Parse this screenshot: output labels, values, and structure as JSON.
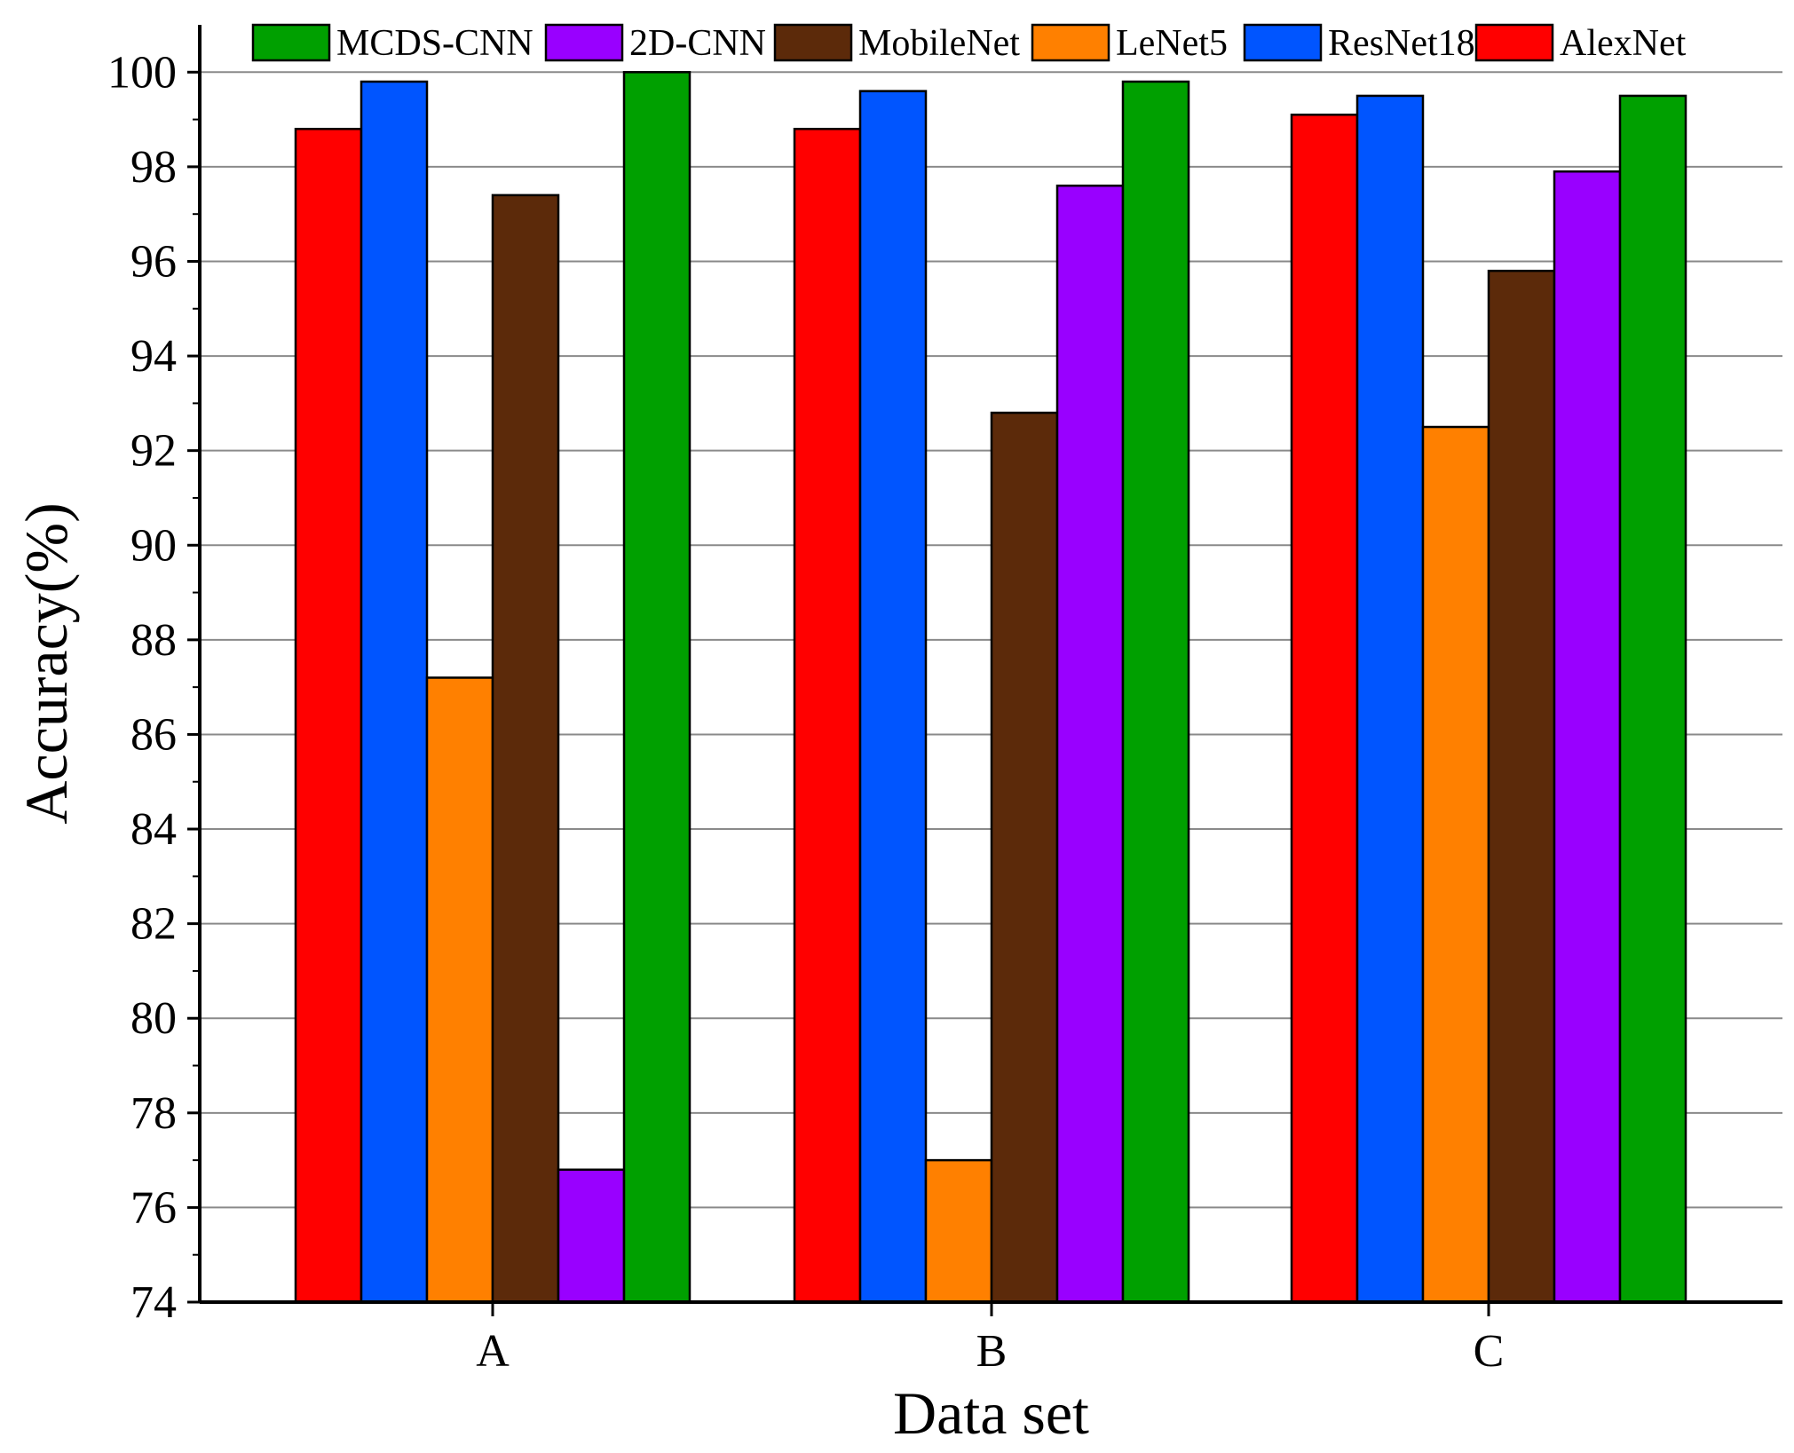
{
  "chart_data": {
    "type": "bar",
    "title": "",
    "xlabel": "Data set",
    "ylabel": "Accuracy(%)",
    "ylim": [
      74,
      101
    ],
    "yticks": [
      74,
      76,
      78,
      80,
      82,
      84,
      86,
      88,
      90,
      92,
      94,
      96,
      98,
      100
    ],
    "grid": true,
    "legend_position": "top",
    "categories": [
      "A",
      "B",
      "C"
    ],
    "series": [
      {
        "name": "AlexNet",
        "color": "#ff0000",
        "values": [
          98.8,
          98.8,
          99.1
        ]
      },
      {
        "name": "ResNet18",
        "color": "#0055ff",
        "values": [
          99.8,
          99.6,
          99.5
        ]
      },
      {
        "name": "LeNet5",
        "color": "#ff8000",
        "values": [
          87.2,
          77.0,
          92.5
        ]
      },
      {
        "name": "MobileNet",
        "color": "#5c2a0a",
        "values": [
          97.4,
          92.8,
          95.8
        ]
      },
      {
        "name": "2D-CNN",
        "color": "#9900ff",
        "values": [
          76.8,
          97.6,
          97.9
        ]
      },
      {
        "name": "MCDS-CNN",
        "color": "#00a000",
        "values": [
          100.0,
          99.8,
          99.5
        ]
      }
    ],
    "legend_order": [
      "MCDS-CNN",
      "2D-CNN",
      "MobileNet",
      "LeNet5",
      "ResNet18",
      "AlexNet"
    ]
  }
}
